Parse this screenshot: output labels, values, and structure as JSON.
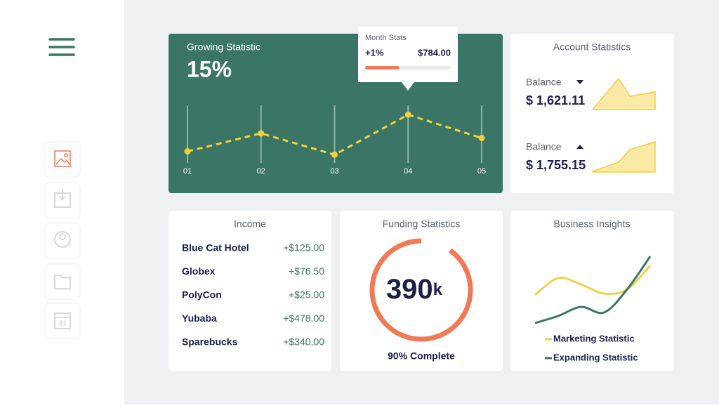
{
  "sidebar": {
    "calendar_day": "31"
  },
  "growing": {
    "title": "Growing Statistic",
    "value": "15%",
    "categories": [
      "01",
      "02",
      "03",
      "04",
      "05"
    ],
    "values": [
      31,
      58,
      26,
      86,
      51
    ],
    "color": "#f2cf3c",
    "tooltip": {
      "title": "Month Stats",
      "change": "+1%",
      "amount": "$784.00",
      "progress": 40
    }
  },
  "account": {
    "title": "Account Statistics",
    "items": [
      {
        "label": "Balance",
        "amount": "$ 1,621.11",
        "trend": "down",
        "values": [
          0,
          88,
          38,
          50
        ]
      },
      {
        "label": "Balance",
        "amount": "$ 1,755.15",
        "trend": "up",
        "values": [
          2,
          28,
          64,
          86
        ]
      }
    ]
  },
  "income": {
    "title": "Income",
    "rows": [
      [
        "Blue Cat Hotel",
        "+$125.00"
      ],
      [
        "Globex",
        "+$76.50"
      ],
      [
        "PolyCon",
        "+$25.00"
      ],
      [
        "Yubaba",
        "+$478.00"
      ],
      [
        "Sparebucks",
        "+$340.00"
      ]
    ]
  },
  "funding": {
    "title": "Funding Statistics",
    "value": "390",
    "unit": "k",
    "progress": 90,
    "caption": "90% Complete"
  },
  "insights": {
    "title": "Business Insights",
    "series": [
      {
        "name": "Marketing Statistic",
        "color": "#f2d04e",
        "values": [
          60,
          84,
          75,
          62,
          68,
          102
        ]
      },
      {
        "name": "Expanding Statistic",
        "color": "#3a7565",
        "values": [
          20,
          30,
          43,
          35,
          68,
          115
        ]
      }
    ]
  }
}
